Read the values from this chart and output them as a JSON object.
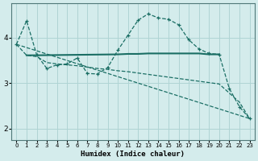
{
  "xlabel": "Humidex (Indice chaleur)",
  "bg_color": "#d4ecec",
  "grid_color": "#afd4d4",
  "line_color": "#1a6e64",
  "xlim": [
    -0.5,
    23.5
  ],
  "ylim": [
    1.75,
    4.75
  ],
  "yticks": [
    2,
    3,
    4
  ],
  "xticks": [
    0,
    1,
    2,
    3,
    4,
    5,
    6,
    7,
    8,
    9,
    10,
    11,
    12,
    13,
    14,
    15,
    16,
    17,
    18,
    19,
    20,
    21,
    22,
    23
  ],
  "line1_x": [
    0,
    1,
    2,
    3,
    4,
    5,
    6,
    7,
    8,
    9,
    10,
    11,
    12,
    13,
    14,
    15,
    16,
    17,
    18,
    19,
    20,
    21,
    22,
    23
  ],
  "line1_y": [
    3.85,
    4.37,
    3.62,
    3.32,
    3.4,
    3.42,
    3.55,
    3.21,
    3.2,
    3.34,
    3.72,
    4.05,
    4.38,
    4.52,
    4.43,
    4.4,
    4.28,
    3.95,
    3.75,
    3.65,
    3.63,
    2.88,
    2.48,
    2.22
  ],
  "line2_x": [
    1,
    2,
    10,
    11,
    12,
    13,
    14,
    15,
    16,
    17,
    18,
    19,
    20
  ],
  "line2_y": [
    3.61,
    3.61,
    3.63,
    3.64,
    3.64,
    3.65,
    3.65,
    3.65,
    3.65,
    3.65,
    3.65,
    3.63,
    3.63
  ],
  "line3_x": [
    0,
    23
  ],
  "line3_y": [
    3.85,
    2.22
  ],
  "line4_x": [
    0,
    1,
    2,
    3,
    4,
    5,
    6,
    7,
    8,
    9,
    10,
    11,
    12,
    13,
    14,
    15,
    16,
    17,
    18,
    19,
    20,
    21,
    22,
    23
  ],
  "line4_y": [
    3.85,
    3.61,
    3.58,
    3.45,
    3.42,
    3.4,
    3.38,
    3.35,
    3.32,
    3.3,
    3.27,
    3.25,
    3.22,
    3.19,
    3.16,
    3.13,
    3.1,
    3.07,
    3.04,
    3.01,
    2.98,
    2.78,
    2.58,
    2.22
  ]
}
